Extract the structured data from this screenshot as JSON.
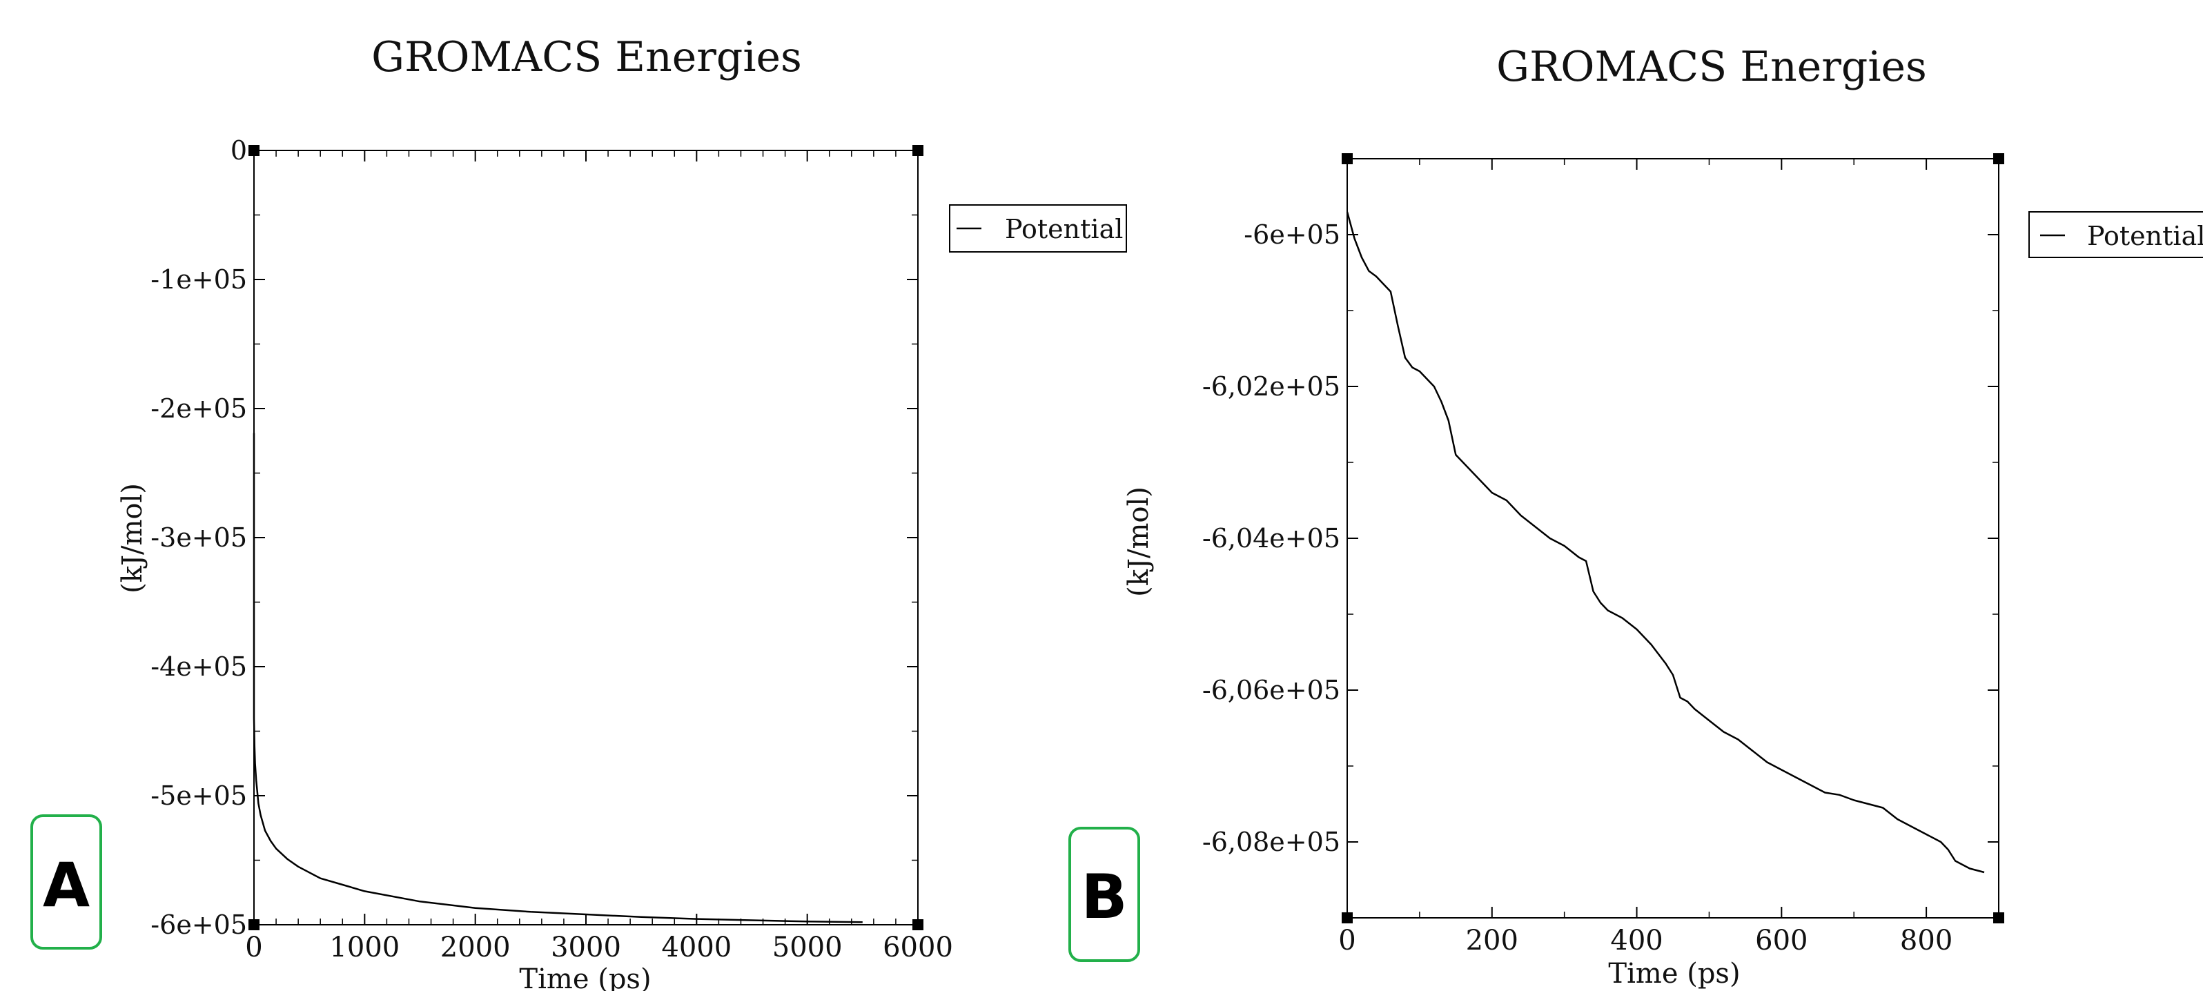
{
  "panels": [
    {
      "id": "A",
      "badge": "A",
      "title": "GROMACS Energies",
      "legend": [
        "Potential"
      ],
      "chart_data": {
        "type": "line",
        "title": "GROMACS Energies",
        "xlabel": "Time (ps)",
        "ylabel": "(kJ/mol)",
        "xlim": [
          0,
          6000
        ],
        "ylim": [
          -600000,
          0
        ],
        "xticks": [
          0,
          1000,
          2000,
          3000,
          4000,
          5000,
          6000
        ],
        "xtick_labels": [
          "0",
          "1000",
          "2000",
          "3000",
          "4000",
          "5000",
          "6000"
        ],
        "yticks": [
          0,
          -100000,
          -200000,
          -300000,
          -400000,
          -500000,
          -600000
        ],
        "ytick_labels": [
          "0",
          "-1e+05",
          "-2e+05",
          "-3e+05",
          "-4e+05",
          "-5e+05",
          "-6e+05"
        ],
        "grid": false,
        "legend_position": "top-right",
        "series": [
          {
            "name": "Potential",
            "color": "#000000",
            "x": [
              0,
              0,
              5,
              10,
              20,
              40,
              60,
              100,
              150,
              200,
              300,
              400,
              600,
              800,
              1000,
              1500,
              2000,
              2500,
              3000,
              3500,
              4000,
              4500,
              5000,
              5500
            ],
            "y": [
              -219000,
              -440000,
              -462000,
              -475000,
              -488000,
              -506000,
              -515000,
              -527000,
              -535000,
              -541000,
              -549000,
              -555000,
              -564000,
              -569000,
              -574000,
              -582000,
              -587000,
              -590000,
              -592000,
              -594000,
              -595500,
              -596500,
              -597500,
              -598000
            ]
          }
        ]
      }
    },
    {
      "id": "B",
      "badge": "B",
      "title": "GROMACS Energies",
      "legend": [
        "Potential"
      ],
      "chart_data": {
        "type": "line",
        "title": "GROMACS Energies",
        "xlabel": "Time (ps)",
        "ylabel": "(kJ/mol)",
        "xlim": [
          0,
          900
        ],
        "ylim": [
          -609000,
          -599000
        ],
        "xticks": [
          0,
          200,
          400,
          600,
          800
        ],
        "xtick_labels": [
          "0",
          "200",
          "400",
          "600",
          "800"
        ],
        "yticks": [
          -600000,
          -602000,
          -604000,
          -606000,
          -608000
        ],
        "ytick_labels": [
          "-6e+05",
          "-6,02e+05",
          "-6,04e+05",
          "-6,06e+05",
          "-6,08e+05"
        ],
        "grid": false,
        "legend_position": "top-right",
        "series": [
          {
            "name": "Potential",
            "color": "#000000",
            "x": [
              0,
              10,
              20,
              30,
              40,
              50,
              60,
              70,
              80,
              90,
              100,
              110,
              120,
              130,
              140,
              150,
              160,
              170,
              180,
              190,
              200,
              220,
              240,
              260,
              280,
              300,
              320,
              330,
              340,
              350,
              360,
              380,
              400,
              420,
              440,
              450,
              460,
              470,
              480,
              500,
              520,
              540,
              560,
              580,
              600,
              620,
              640,
              660,
              680,
              700,
              720,
              740,
              760,
              780,
              800,
              820,
              830,
              840,
              860,
              880
            ],
            "y": [
              -599700,
              -600050,
              -600300,
              -600480,
              -600550,
              -600650,
              -600750,
              -601200,
              -601620,
              -601750,
              -601800,
              -601900,
              -602000,
              -602200,
              -602450,
              -602900,
              -603000,
              -603100,
              -603200,
              -603300,
              -603400,
              -603500,
              -603700,
              -603850,
              -604000,
              -604100,
              -604250,
              -604300,
              -604700,
              -604850,
              -604950,
              -605050,
              -605200,
              -605400,
              -605650,
              -605800,
              -606100,
              -606150,
              -606250,
              -606400,
              -606550,
              -606650,
              -606800,
              -606950,
              -607050,
              -607150,
              -607250,
              -607350,
              -607380,
              -607450,
              -607500,
              -607550,
              -607700,
              -607800,
              -607900,
              -608000,
              -608100,
              -608250,
              -608350,
              -608400
            ]
          }
        ]
      }
    }
  ]
}
